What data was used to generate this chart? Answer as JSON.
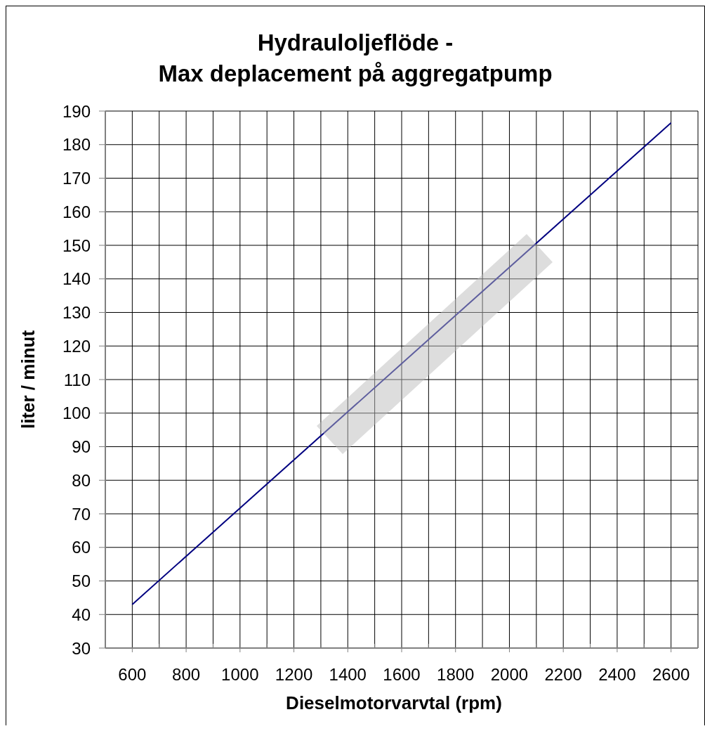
{
  "chart_data": {
    "type": "line",
    "title": "Hydrauloljeflöde -\nMax deplacement på aggregatpump",
    "xlabel": "Dieselmotorvarvtal (rpm)",
    "ylabel": "liter / minut",
    "x": [
      600,
      2600
    ],
    "series": [
      {
        "color": "#000080",
        "values": [
          43,
          186.5
        ]
      }
    ],
    "xlim": [
      500,
      2700
    ],
    "xticks": [
      {
        "value": 500,
        "label": null
      },
      600,
      {
        "value": 700,
        "label": null
      },
      800,
      {
        "value": 900,
        "label": null
      },
      1000,
      {
        "value": 1100,
        "label": null
      },
      1200,
      {
        "value": 1300,
        "label": null
      },
      1400,
      {
        "value": 1500,
        "label": null
      },
      1600,
      {
        "value": 1700,
        "label": null
      },
      1800,
      {
        "value": 1900,
        "label": null
      },
      2000,
      {
        "value": 2100,
        "label": null
      },
      2200,
      {
        "value": 2300,
        "label": null
      },
      2400,
      {
        "value": 2500,
        "label": null
      },
      2600,
      {
        "value": 2700,
        "label": null
      }
    ],
    "ylim": [
      30,
      190
    ],
    "yticks": [
      30,
      40,
      50,
      60,
      70,
      80,
      90,
      100,
      110,
      120,
      130,
      140,
      150,
      160,
      170,
      180,
      190
    ],
    "grid": true,
    "marker": "none",
    "line_style": "solid"
  }
}
